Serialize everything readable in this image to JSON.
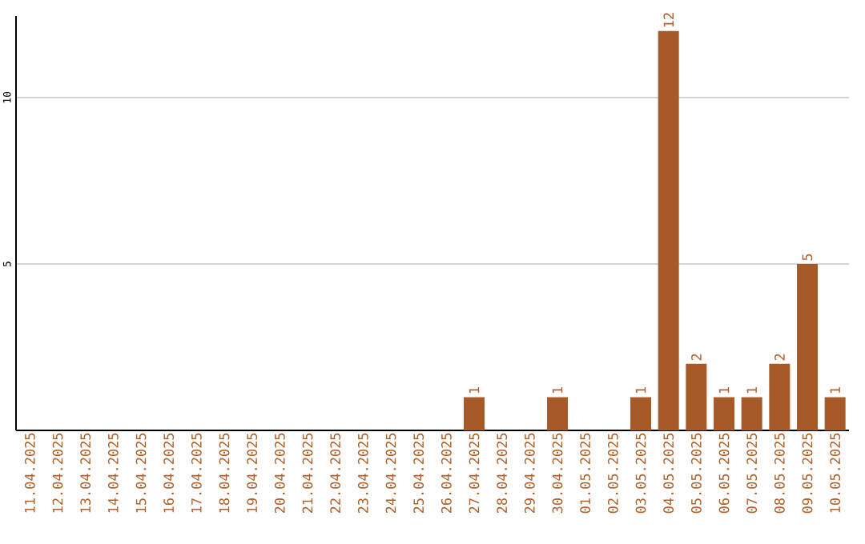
{
  "chart_data": {
    "type": "bar",
    "categories": [
      "11.04.2025",
      "12.04.2025",
      "13.04.2025",
      "14.04.2025",
      "15.04.2025",
      "16.04.2025",
      "17.04.2025",
      "18.04.2025",
      "19.04.2025",
      "20.04.2025",
      "21.04.2025",
      "22.04.2025",
      "23.04.2025",
      "24.04.2025",
      "25.04.2025",
      "26.04.2025",
      "27.04.2025",
      "28.04.2025",
      "29.04.2025",
      "30.04.2025",
      "01.05.2025",
      "02.05.2025",
      "03.05.2025",
      "04.05.2025",
      "05.05.2025",
      "06.05.2025",
      "07.05.2025",
      "08.05.2025",
      "09.05.2025",
      "10.05.2025"
    ],
    "values": [
      0,
      0,
      0,
      0,
      0,
      0,
      0,
      0,
      0,
      0,
      0,
      0,
      0,
      0,
      0,
      0,
      1,
      0,
      0,
      1,
      0,
      0,
      1,
      12,
      2,
      1,
      1,
      2,
      5,
      1
    ],
    "value_labels": [
      null,
      null,
      null,
      null,
      null,
      null,
      null,
      null,
      null,
      null,
      null,
      null,
      null,
      null,
      null,
      null,
      "1",
      null,
      null,
      "1",
      null,
      null,
      "1",
      "12",
      "2",
      "1",
      "1",
      "2",
      "5",
      "1"
    ],
    "color": "#a65a28",
    "ylim": [
      0,
      12.45
    ],
    "yticks": [
      5,
      10
    ],
    "grid": "y"
  }
}
